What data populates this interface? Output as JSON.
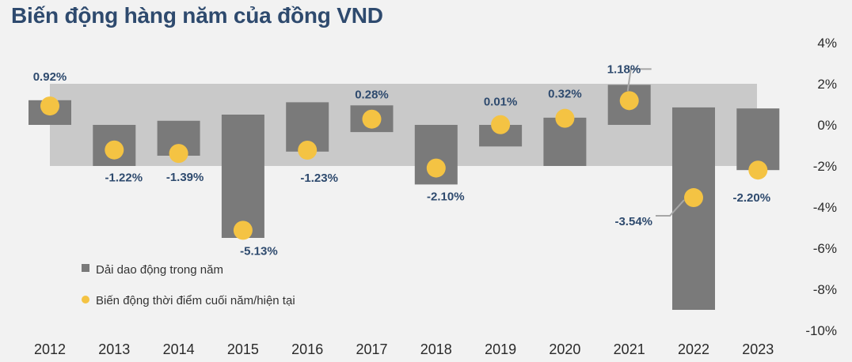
{
  "title": "Biến động hàng năm của đồng VND",
  "colors": {
    "background": "#f2f2f2",
    "band": "#c9c9c9",
    "bar": "#7a7a7a",
    "dot": "#f4c343",
    "label": "#2e4a6e",
    "leader": "#a6a6a6"
  },
  "chart_data": {
    "type": "bar",
    "title": "Biến động hàng năm của đồng VND",
    "categories": [
      "2012",
      "2013",
      "2014",
      "2015",
      "2016",
      "2017",
      "2018",
      "2019",
      "2020",
      "2021",
      "2022",
      "2023"
    ],
    "ylim": [
      -10,
      4
    ],
    "yticks": [
      4,
      2,
      0,
      -2,
      -4,
      -6,
      -8,
      -10
    ],
    "ytick_labels": [
      "4%",
      "2%",
      "0%",
      "-2%",
      "-4%",
      "-6%",
      "-8%",
      "-10%"
    ],
    "band": [
      -2,
      2
    ],
    "series": [
      {
        "name": "Dải dao động trong năm",
        "kind": "range-bar",
        "values": [
          [
            0,
            1.2
          ],
          [
            -2.0,
            0
          ],
          [
            -1.5,
            0.2
          ],
          [
            -5.5,
            0.5
          ],
          [
            -1.3,
            1.1
          ],
          [
            -0.35,
            0.95
          ],
          [
            -2.9,
            0
          ],
          [
            -1.05,
            0
          ],
          [
            -2.0,
            0.35
          ],
          [
            0,
            1.95
          ],
          [
            -9.0,
            0.85
          ],
          [
            -2.2,
            0.8
          ]
        ]
      },
      {
        "name": "Biến động thời điểm cuối năm/hiện tại",
        "kind": "dot",
        "values": [
          0.92,
          -1.22,
          -1.39,
          -5.13,
          -1.23,
          0.28,
          -2.1,
          0.01,
          0.32,
          1.18,
          -3.54,
          -2.2
        ],
        "labels": [
          "0.92%",
          "-1.22%",
          "-1.39%",
          "-5.13%",
          "-1.23%",
          "0.28%",
          "-2.10%",
          "0.01%",
          "0.32%",
          "1.18%",
          "-3.54%",
          "-2.20%"
        ]
      }
    ],
    "legend": [
      "Dải dao động trong năm",
      "Biến động thời điểm cuối năm/hiện tại"
    ],
    "legend_position": "lower-left"
  }
}
